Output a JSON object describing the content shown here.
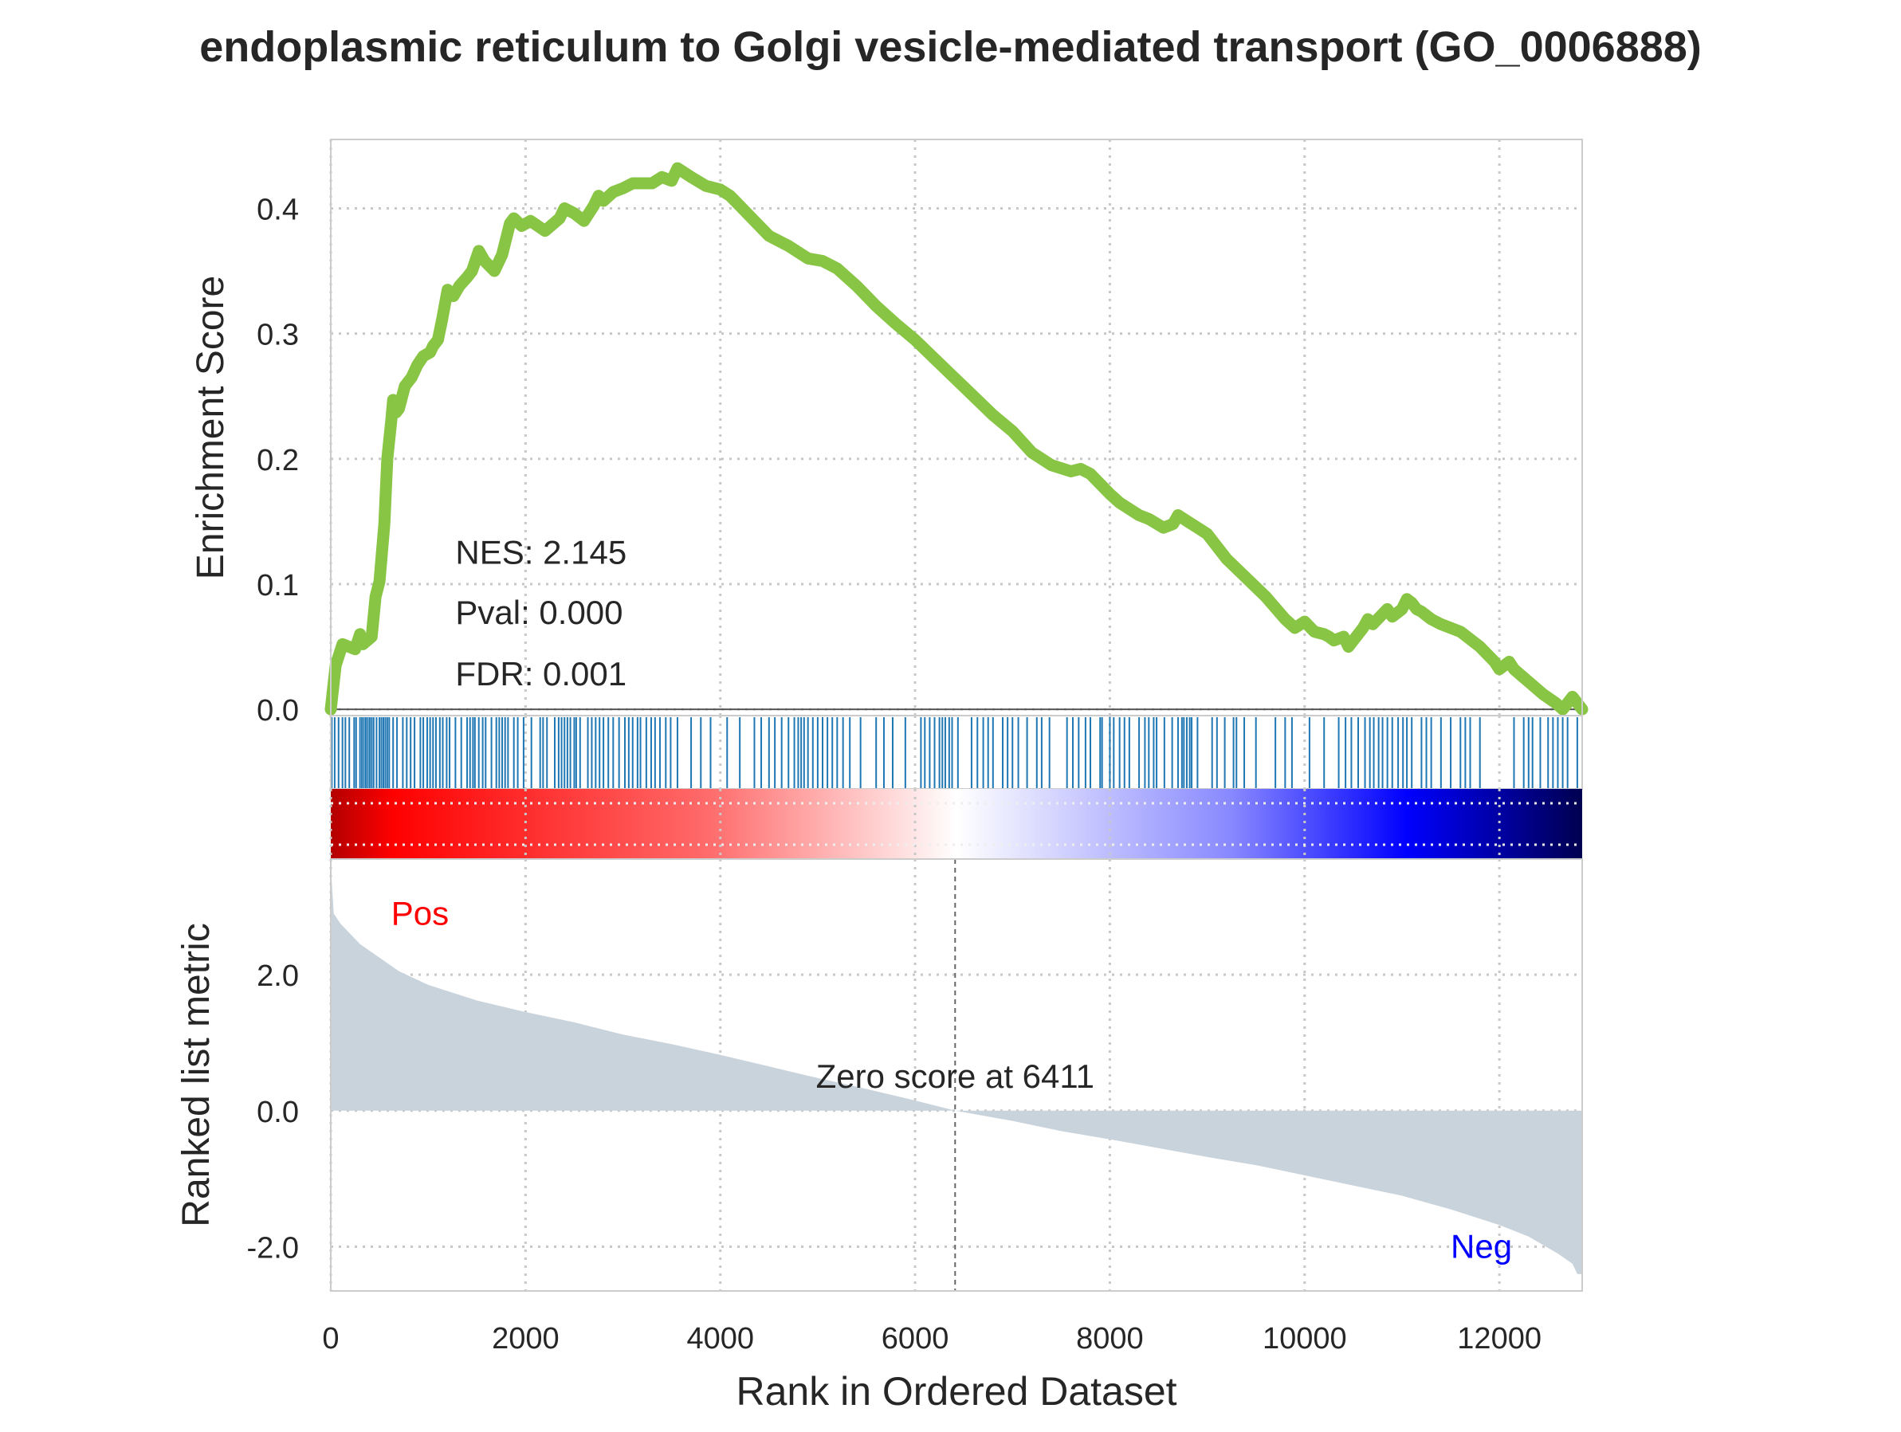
{
  "chart_data": {
    "type": "line",
    "title": "endoplasmic reticulum to Golgi vesicle-mediated transport (GO_0006888)",
    "xlabel": "Rank in Ordered Dataset",
    "xlim": [
      0,
      12850
    ],
    "x_ticks": [
      0,
      2000,
      4000,
      6000,
      8000,
      10000,
      12000
    ],
    "grid": true,
    "colors": {
      "es_line": "#88c544",
      "hits": "#1f77b4",
      "metric_fill": "#c9d3dc",
      "pos_label": "#ff0000",
      "neg_label": "#0000ff"
    },
    "panels": {
      "enrichment": {
        "ylabel": "Enrichment Score",
        "ylim": [
          -0.005,
          0.455
        ],
        "y_ticks": [
          0.0,
          0.1,
          0.2,
          0.3,
          0.4
        ],
        "series": [
          {
            "x": [
              0,
              50,
              120,
              250,
              300,
              330,
              420,
              460,
              500,
              550,
              580,
              620,
              640,
              670,
              700,
              760,
              830,
              890,
              950,
              1020,
              1050,
              1100,
              1140,
              1200,
              1260,
              1320,
              1400,
              1450,
              1520,
              1580,
              1680,
              1760,
              1840,
              1880,
              1960,
              2050,
              2200,
              2350,
              2400,
              2500,
              2600,
              2700,
              2750,
              2800,
              2900,
              3000,
              3100,
              3200,
              3300,
              3400,
              3500,
              3560,
              3700,
              3850,
              4000,
              4100,
              4200,
              4350,
              4500,
              4700,
              4900,
              5050,
              5200,
              5400,
              5600,
              5800,
              6000,
              6200,
              6400,
              6600,
              6800,
              7000,
              7200,
              7400,
              7600,
              7700,
              7800,
              7900,
              8000,
              8100,
              8200,
              8300,
              8400,
              8550,
              8650,
              8700,
              8800,
              8900,
              9000,
              9100,
              9200,
              9400,
              9600,
              9800,
              9900,
              10000,
              10100,
              10200,
              10250,
              10300,
              10400,
              10450,
              10500,
              10600,
              10650,
              10700,
              10800,
              10850,
              10900,
              11000,
              11050,
              11100,
              11150,
              11200,
              11250,
              11300,
              11400,
              11600,
              11800,
              11950,
              12000,
              12050,
              12100,
              12150,
              12300,
              12450,
              12580,
              12650,
              12700,
              12750,
              12850
            ],
            "y": [
              0.0,
              0.035,
              0.052,
              0.048,
              0.06,
              0.052,
              0.058,
              0.09,
              0.102,
              0.148,
              0.2,
              0.23,
              0.247,
              0.237,
              0.24,
              0.258,
              0.265,
              0.275,
              0.282,
              0.285,
              0.29,
              0.295,
              0.31,
              0.335,
              0.33,
              0.338,
              0.345,
              0.35,
              0.366,
              0.358,
              0.35,
              0.363,
              0.388,
              0.392,
              0.386,
              0.39,
              0.382,
              0.392,
              0.4,
              0.396,
              0.39,
              0.402,
              0.41,
              0.406,
              0.413,
              0.416,
              0.42,
              0.42,
              0.42,
              0.425,
              0.422,
              0.432,
              0.425,
              0.418,
              0.415,
              0.41,
              0.402,
              0.39,
              0.378,
              0.37,
              0.36,
              0.358,
              0.352,
              0.338,
              0.322,
              0.308,
              0.295,
              0.28,
              0.265,
              0.25,
              0.235,
              0.222,
              0.205,
              0.195,
              0.19,
              0.192,
              0.188,
              0.18,
              0.172,
              0.165,
              0.16,
              0.155,
              0.152,
              0.145,
              0.148,
              0.155,
              0.15,
              0.145,
              0.14,
              0.13,
              0.12,
              0.105,
              0.09,
              0.072,
              0.065,
              0.07,
              0.062,
              0.06,
              0.058,
              0.055,
              0.058,
              0.05,
              0.055,
              0.065,
              0.072,
              0.068,
              0.076,
              0.08,
              0.074,
              0.08,
              0.088,
              0.085,
              0.08,
              0.078,
              0.075,
              0.072,
              0.068,
              0.062,
              0.05,
              0.038,
              0.032,
              0.035,
              0.038,
              0.032,
              0.022,
              0.012,
              0.005,
              0.0,
              0.005,
              0.01,
              0.0
            ]
          }
        ],
        "annotations": [
          "NES: 2.145",
          "Pval: 0.000",
          "FDR: 0.001"
        ]
      },
      "hits": {
        "x": [
          10,
          40,
          80,
          120,
          150,
          190,
          240,
          260,
          300,
          320,
          340,
          360,
          380,
          400,
          420,
          440,
          470,
          500,
          520,
          540,
          560,
          580,
          600,
          640,
          680,
          740,
          780,
          820,
          860,
          920,
          950,
          990,
          1020,
          1050,
          1080,
          1120,
          1150,
          1190,
          1220,
          1280,
          1340,
          1400,
          1430,
          1460,
          1480,
          1520,
          1560,
          1590,
          1650,
          1700,
          1730,
          1760,
          1790,
          1820,
          1880,
          1920,
          1980,
          2060,
          2150,
          2180,
          2220,
          2300,
          2340,
          2370,
          2400,
          2430,
          2460,
          2500,
          2520,
          2560,
          2640,
          2680,
          2720,
          2760,
          2800,
          2850,
          2900,
          2960,
          3020,
          3060,
          3100,
          3150,
          3180,
          3240,
          3290,
          3330,
          3380,
          3440,
          3490,
          3560,
          3700,
          3800,
          3900,
          4070,
          4200,
          4350,
          4420,
          4500,
          4560,
          4630,
          4700,
          4760,
          4800,
          4830,
          4860,
          4900,
          4950,
          5000,
          5050,
          5100,
          5150,
          5200,
          5260,
          5330,
          5440,
          5600,
          5680,
          5770,
          5900,
          6060,
          6100,
          6150,
          6200,
          6250,
          6280,
          6310,
          6350,
          6380,
          6440,
          6580,
          6640,
          6700,
          6750,
          6800,
          6900,
          6950,
          7000,
          7060,
          7150,
          7250,
          7300,
          7380,
          7560,
          7620,
          7680,
          7750,
          7800,
          7900,
          7920,
          8000,
          8040,
          8100,
          8150,
          8200,
          8300,
          8360,
          8400,
          8450,
          8480,
          8560,
          8640,
          8700,
          8740,
          8760,
          8790,
          8820,
          8840,
          8900,
          9050,
          9100,
          9180,
          9270,
          9300,
          9380,
          9500,
          9700,
          9800,
          9870,
          10050,
          10200,
          10350,
          10420,
          10480,
          10550,
          10620,
          10670,
          10710,
          10760,
          10800,
          10850,
          10900,
          10960,
          11010,
          11050,
          11100,
          11200,
          11250,
          11300,
          11400,
          11500,
          11600,
          11650,
          11700,
          11800,
          12150,
          12250,
          12300,
          12340,
          12420,
          12500,
          12550,
          12600,
          12650,
          12700,
          12800
        ]
      },
      "ranked_metric": {
        "ylabel": "Ranked list metric",
        "ylim": [
          -2.65,
          3.7
        ],
        "y_ticks": [
          -2.0,
          0.0,
          2.0
        ],
        "y_tick_labels": [
          "-2.0",
          "0.0",
          "2.0"
        ],
        "x": [
          0,
          30,
          100,
          200,
          300,
          500,
          700,
          1000,
          1500,
          2000,
          2500,
          3000,
          3500,
          4000,
          4500,
          5000,
          5500,
          6000,
          6411,
          7000,
          7500,
          8000,
          8500,
          9000,
          9500,
          10000,
          10500,
          11000,
          11500,
          12000,
          12300,
          12600,
          12750,
          12800,
          12850
        ],
        "values": [
          3.6,
          2.9,
          2.75,
          2.6,
          2.45,
          2.25,
          2.05,
          1.85,
          1.62,
          1.45,
          1.3,
          1.12,
          0.98,
          0.82,
          0.65,
          0.48,
          0.32,
          0.15,
          0.0,
          -0.15,
          -0.3,
          -0.42,
          -0.55,
          -0.68,
          -0.8,
          -0.95,
          -1.1,
          -1.25,
          -1.45,
          -1.68,
          -1.85,
          -2.1,
          -2.25,
          -2.4,
          -2.4
        ],
        "zero_cross": 6411,
        "annotation": "Zero score at 6411",
        "pos_label": "Pos",
        "neg_label": "Neg"
      }
    }
  }
}
